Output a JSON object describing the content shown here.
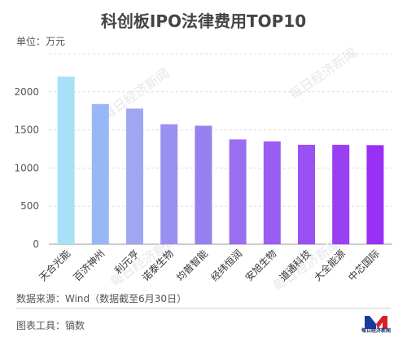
{
  "title": "科创板IPO法律费用TOP10",
  "unit_label": "单位：万元",
  "source_label": "数据来源：Wind（数据截至6月30日）",
  "tool_label": "图表工具：镝数",
  "watermark": "每日经济新闻",
  "logo_text": "每日经济新闻",
  "chart_data": {
    "type": "bar",
    "categories": [
      "天合光能",
      "百济神州",
      "利元亨",
      "诺泰生物",
      "均普智能",
      "经纬恒润",
      "安旭生物",
      "道通科技",
      "大全能源",
      "中芯国际"
    ],
    "values": [
      2200,
      1840,
      1780,
      1575,
      1555,
      1375,
      1350,
      1305,
      1305,
      1300
    ],
    "ylim": [
      0,
      2500
    ],
    "yticks": [
      0,
      500,
      1000,
      1500,
      2000,
      2500
    ],
    "ytick_labels": [
      "0",
      "500",
      "1000",
      "1500",
      "2000",
      ""
    ],
    "grid": true,
    "bar_colors": [
      "#a8e0f8",
      "#9ab7f5",
      "#a0a6f2",
      "#9a90f0",
      "#9880f0",
      "#9a6ef0",
      "#9a5ef2",
      "#9a50f2",
      "#9940f2",
      "#9a30f4"
    ]
  }
}
